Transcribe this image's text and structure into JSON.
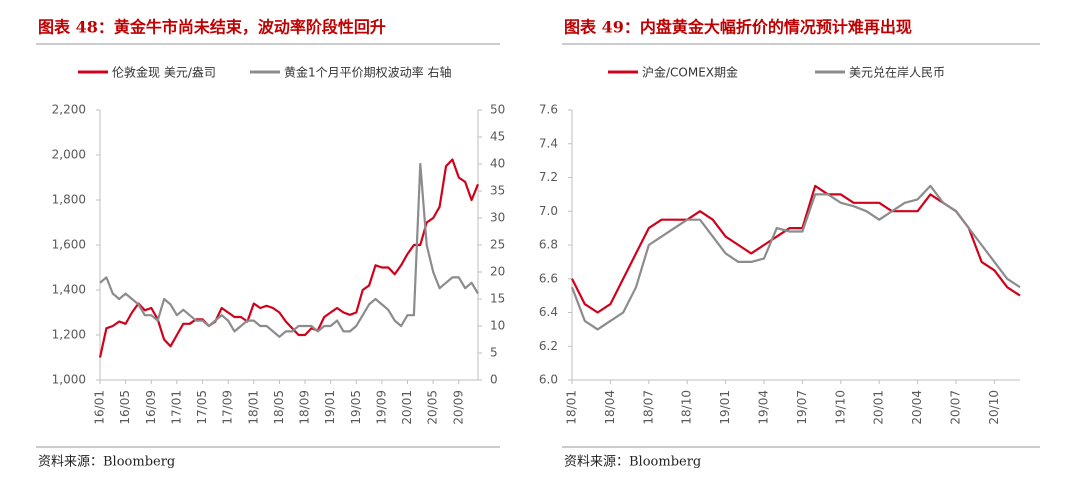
{
  "chart_data": [
    {
      "type": "line",
      "title": "图表 48：黄金牛市尚未结束，波动率阶段性回升",
      "source": "资料来源：Bloomberg",
      "categories": [
        "16/01",
        null,
        null,
        null,
        "16/05",
        null,
        null,
        null,
        "16/09",
        null,
        null,
        null,
        "17/01",
        null,
        null,
        null,
        "17/05",
        null,
        null,
        null,
        "17/09",
        null,
        null,
        null,
        "18/01",
        null,
        null,
        null,
        "18/05",
        null,
        null,
        null,
        "18/09",
        null,
        null,
        null,
        "19/01",
        null,
        null,
        null,
        "19/05",
        null,
        null,
        null,
        "19/09",
        null,
        null,
        null,
        "20/01",
        null,
        null,
        null,
        "20/05",
        null,
        null,
        null,
        "20/09",
        null,
        null,
        null
      ],
      "series": [
        {
          "name": "伦敦金现 美元/盎司",
          "color": "#d0021b",
          "values": [
            1100,
            1230,
            1240,
            1260,
            1250,
            1300,
            1340,
            1310,
            1320,
            1270,
            1180,
            1150,
            1200,
            1250,
            1250,
            1270,
            1270,
            1240,
            1260,
            1320,
            1300,
            1280,
            1280,
            1260,
            1340,
            1320,
            1330,
            1320,
            1300,
            1260,
            1230,
            1200,
            1200,
            1230,
            1220,
            1280,
            1300,
            1320,
            1300,
            1290,
            1300,
            1400,
            1420,
            1510,
            1500,
            1500,
            1470,
            1510,
            1560,
            1600,
            1600,
            1700,
            1720,
            1770,
            1950,
            1980,
            1900,
            1880,
            1800,
            1870
          ]
        },
        {
          "name": "黄金1个月平价期权波动率 右轴",
          "color": "#8c8c8c",
          "axis": "y2",
          "values": [
            18,
            19,
            16,
            15,
            16,
            15,
            14,
            12,
            12,
            11,
            15,
            14,
            12,
            13,
            12,
            11,
            11,
            10,
            11,
            12,
            11,
            9,
            10,
            11,
            11,
            10,
            10,
            9,
            8,
            9,
            9,
            10,
            10,
            10,
            9,
            10,
            10,
            11,
            9,
            9,
            10,
            12,
            14,
            15,
            14,
            13,
            11,
            10,
            12,
            12,
            40,
            25,
            20,
            17,
            18,
            19,
            19,
            17,
            18,
            16
          ]
        }
      ],
      "ylim": [
        1000,
        2200
      ],
      "yticks": [
        {
          "value": 1000,
          "label": "1,000"
        },
        {
          "value": 1200,
          "label": "1,200"
        },
        {
          "value": 1400,
          "label": "1,400"
        },
        {
          "value": 1600,
          "label": "1,600"
        },
        {
          "value": 1800,
          "label": "1,800"
        },
        {
          "value": 2000,
          "label": "2,000"
        },
        {
          "value": 2200,
          "label": "2,200"
        }
      ],
      "y2lim": [
        0,
        50
      ],
      "y2ticks": [
        0,
        5,
        10,
        15,
        20,
        25,
        30,
        35,
        40,
        45,
        50
      ]
    },
    {
      "type": "line",
      "title": "图表 49：内盘黄金大幅折价的情况预计难再出现",
      "source": "资料来源：Bloomberg",
      "categories": [
        "18/01",
        null,
        null,
        "18/04",
        null,
        null,
        "18/07",
        null,
        null,
        "18/10",
        null,
        null,
        "19/01",
        null,
        null,
        "19/04",
        null,
        null,
        "19/07",
        null,
        null,
        "19/10",
        null,
        null,
        "20/01",
        null,
        null,
        "20/04",
        null,
        null,
        "20/07",
        null,
        null,
        "20/10",
        null,
        null
      ],
      "series": [
        {
          "name": "沪金/COMEX期金",
          "color": "#d0021b",
          "values": [
            6.6,
            6.45,
            6.4,
            6.45,
            6.6,
            6.75,
            6.9,
            6.95,
            6.95,
            6.95,
            7.0,
            6.95,
            6.85,
            6.8,
            6.75,
            6.8,
            6.85,
            6.9,
            6.9,
            7.15,
            7.1,
            7.1,
            7.05,
            7.05,
            7.05,
            7.0,
            7.0,
            7.0,
            7.1,
            7.05,
            7.0,
            6.9,
            6.7,
            6.65,
            6.55,
            6.5
          ]
        },
        {
          "name": "美元兑在岸人民币",
          "color": "#8c8c8c",
          "values": [
            6.55,
            6.35,
            6.3,
            6.35,
            6.4,
            6.55,
            6.8,
            6.85,
            6.9,
            6.95,
            6.95,
            6.85,
            6.75,
            6.7,
            6.7,
            6.72,
            6.9,
            6.88,
            6.88,
            7.1,
            7.1,
            7.05,
            7.03,
            7.0,
            6.95,
            7.0,
            7.05,
            7.07,
            7.15,
            7.05,
            7.0,
            6.9,
            6.8,
            6.7,
            6.6,
            6.55
          ]
        }
      ],
      "ylim": [
        6.0,
        7.6
      ],
      "yticks": [
        {
          "value": 6.0,
          "label": "6.0"
        },
        {
          "value": 6.2,
          "label": "6.2"
        },
        {
          "value": 6.4,
          "label": "6.4"
        },
        {
          "value": 6.6,
          "label": "6.6"
        },
        {
          "value": 6.8,
          "label": "6.8"
        },
        {
          "value": 7.0,
          "label": "7.0"
        },
        {
          "value": 7.2,
          "label": "7.2"
        },
        {
          "value": 7.4,
          "label": "7.4"
        },
        {
          "value": 7.6,
          "label": "7.6"
        }
      ]
    }
  ]
}
